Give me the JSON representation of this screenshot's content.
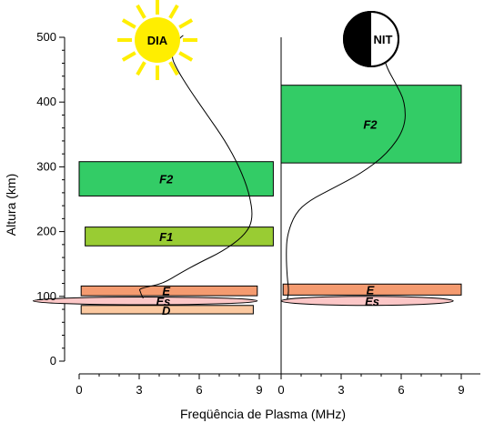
{
  "chart_data": {
    "type": "diagram",
    "ylabel": "Altura (km)",
    "xlabel": "Freqüência de Plasma (MHz)",
    "y_ticks": [
      0,
      100,
      200,
      300,
      400,
      500
    ],
    "x_ticks": [
      0,
      3,
      6,
      9
    ],
    "y_range": [
      0,
      500
    ],
    "x_range": [
      0,
      9
    ],
    "panels": [
      {
        "id": "day",
        "badge": "DIA",
        "colors": {
          "sun": "#ffee00"
        },
        "layers": [
          {
            "label": "F2",
            "x0": 0,
            "x1": 9.7,
            "y0": 255,
            "y1": 308,
            "color": "#33cc66"
          },
          {
            "label": "F1",
            "x0": 0.3,
            "x1": 9.7,
            "y0": 178,
            "y1": 207,
            "color": "#99cc33"
          },
          {
            "label": "E",
            "x0": 0.1,
            "x1": 8.9,
            "y0": 101,
            "y1": 116,
            "color": "#f49b70"
          },
          {
            "label": "D",
            "x0": 0.1,
            "x1": 8.7,
            "y0": 73,
            "y1": 86,
            "color": "#fbc8a0"
          }
        ],
        "sporadic": {
          "label": "Es",
          "x_center": 3.3,
          "y_center": 93,
          "x_half": 5.6,
          "y_half": 6,
          "color": "#fcc7c7"
        },
        "profile": [
          [
            3.2,
            97
          ],
          [
            3.1,
            103
          ],
          [
            3.05,
            108
          ],
          [
            3.0,
            111
          ],
          [
            3.3,
            114
          ],
          [
            4.2,
            120
          ],
          [
            5.0,
            135
          ],
          [
            6.0,
            152
          ],
          [
            7.2,
            170
          ],
          [
            8.3,
            195
          ],
          [
            8.7,
            220
          ],
          [
            8.5,
            260
          ],
          [
            8.0,
            300
          ],
          [
            7.3,
            340
          ],
          [
            6.4,
            380
          ],
          [
            5.5,
            420
          ],
          [
            4.9,
            450
          ],
          [
            4.6,
            470
          ],
          [
            4.8,
            485
          ],
          [
            5.0,
            498
          ],
          [
            5.2,
            503
          ]
        ]
      },
      {
        "id": "night",
        "badge": "NIT",
        "colors": {
          "moon_dark": "#000000",
          "moon_light": "#ffffff"
        },
        "layers": [
          {
            "label": "F2",
            "x0": 0,
            "x1": 9.0,
            "y0": 306,
            "y1": 426,
            "color": "#33cc66"
          },
          {
            "label": "E",
            "x0": 0.1,
            "x1": 9.0,
            "y0": 102,
            "y1": 119,
            "color": "#f49b70"
          }
        ],
        "sporadic": {
          "label": "Es",
          "x_center": 4.3,
          "y_center": 93,
          "x_half": 4.3,
          "y_half": 7,
          "color": "#fcc7c7"
        },
        "profile": [
          [
            0.3,
            95
          ],
          [
            0.4,
            105
          ],
          [
            0.3,
            130
          ],
          [
            0.25,
            165
          ],
          [
            0.3,
            195
          ],
          [
            0.7,
            228
          ],
          [
            1.4,
            248
          ],
          [
            2.6,
            267
          ],
          [
            4.0,
            290
          ],
          [
            5.3,
            320
          ],
          [
            6.2,
            360
          ],
          [
            6.2,
            400
          ],
          [
            5.7,
            430
          ],
          [
            5.3,
            452
          ],
          [
            5.1,
            472
          ],
          [
            5.0,
            485
          ],
          [
            5.0,
            497
          ]
        ]
      }
    ]
  }
}
